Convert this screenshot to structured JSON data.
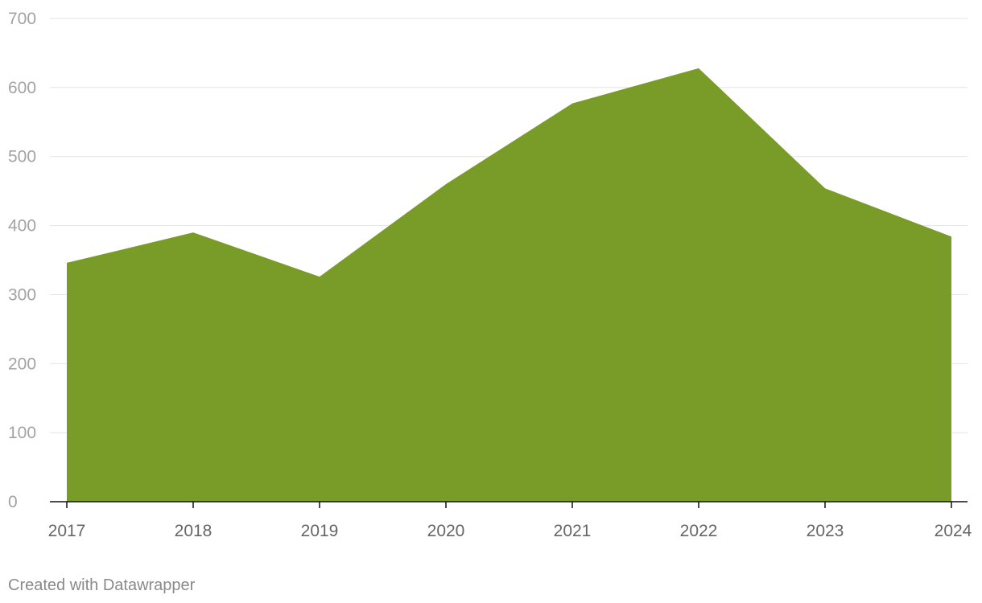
{
  "chart_data": {
    "type": "area",
    "categories": [
      "2017",
      "2018",
      "2019",
      "2020",
      "2021",
      "2022",
      "2023",
      "2024"
    ],
    "values": [
      346,
      390,
      326,
      460,
      577,
      628,
      454,
      384
    ],
    "color": "#799b27",
    "ylim": [
      0,
      700
    ],
    "yticks": [
      0,
      100,
      200,
      300,
      400,
      500,
      600,
      700
    ],
    "grid": true,
    "footer": "Created with Datawrapper"
  }
}
